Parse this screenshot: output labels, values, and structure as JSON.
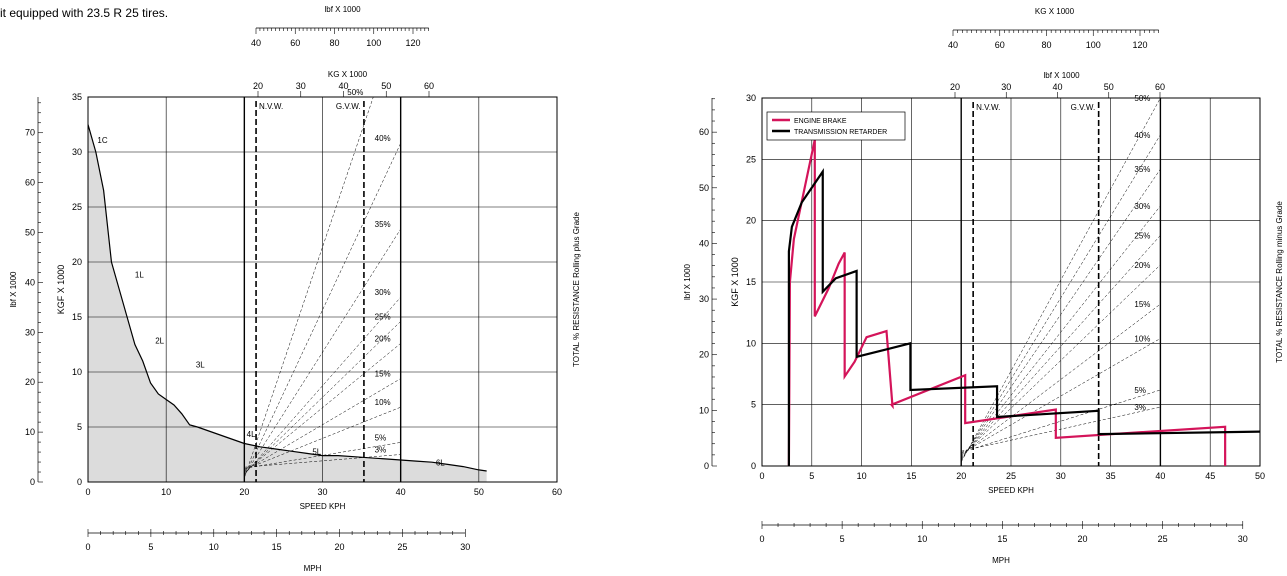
{
  "caption": "it equipped with 23.5 R 25 tires.",
  "chart_data": [
    {
      "type": "line",
      "name": "Rimpull",
      "x_unit": "SPEED KPH",
      "x_ticks": [
        0,
        10,
        20,
        30,
        40,
        50,
        60
      ],
      "xlim": [
        0,
        60
      ],
      "y_left_label": "KGF X 1000",
      "y_left_ticks": [
        0,
        5,
        10,
        15,
        20,
        25,
        30,
        35
      ],
      "ylim": [
        0,
        35
      ],
      "y_far_left_label": "lbf X 1000",
      "y_far_left_ticks": [
        0,
        10,
        20,
        30,
        40,
        50,
        60,
        70
      ],
      "y_right_label": "TOTAL % RESISTANCE Rolling plus Grade",
      "mph_label": "MPH",
      "mph_ticks": [
        0,
        5,
        10,
        15,
        20,
        25,
        30
      ],
      "top_scale_1_label": "lbf X 1000",
      "top_scale_1_ticks": [
        40,
        60,
        80,
        100,
        120
      ],
      "top_scale_2_label": "KG X 1000",
      "top_scale_2_ticks": [
        20,
        30,
        40,
        50,
        60
      ],
      "nvw_label": "N.V.W.",
      "gvw_label": "G.V.W.",
      "nvw_x": 21.5,
      "gvw_x": 35.3,
      "grade_labels": [
        "50%",
        "40%",
        "35%",
        "30%",
        "25%",
        "20%",
        "15%",
        "10%",
        "5%",
        "3%"
      ],
      "gear_labels": [
        {
          "text": "1C",
          "x": 1.2,
          "y": 30.8
        },
        {
          "text": "1L",
          "x": 6.0,
          "y": 18.6
        },
        {
          "text": "2L",
          "x": 8.6,
          "y": 12.6
        },
        {
          "text": "3L",
          "x": 13.8,
          "y": 10.4
        },
        {
          "text": "4L",
          "x": 20.3,
          "y": 4.1
        },
        {
          "text": "5L",
          "x": 28.7,
          "y": 2.5
        },
        {
          "text": "6L",
          "x": 44.5,
          "y": 1.5
        }
      ],
      "curve": {
        "x": [
          0,
          1,
          2,
          3,
          4,
          5,
          6,
          7,
          8,
          9,
          10,
          11,
          12,
          13,
          14,
          16,
          18,
          20,
          22,
          24,
          26,
          28,
          30,
          32,
          34,
          36,
          38,
          40,
          42,
          44,
          46,
          48,
          50,
          51
        ],
        "y": [
          32.5,
          30,
          26.5,
          20,
          17.5,
          15,
          12.5,
          11,
          9,
          8,
          7.5,
          7,
          6.2,
          5.2,
          5,
          4.5,
          4,
          3.5,
          3.2,
          3,
          2.8,
          2.6,
          2.4,
          2.4,
          2.3,
          2.2,
          2.1,
          2,
          1.9,
          1.8,
          1.6,
          1.4,
          1.1,
          1.0
        ]
      }
    },
    {
      "type": "line",
      "name": "Retarding",
      "x_unit": "SPEED KPH",
      "x_ticks": [
        0,
        5,
        10,
        15,
        20,
        25,
        30,
        35,
        40,
        45,
        50
      ],
      "xlim": [
        0,
        50
      ],
      "y_left_label": "KGF X 1000",
      "y_left_ticks": [
        0,
        5,
        10,
        15,
        20,
        25,
        30
      ],
      "ylim": [
        0,
        30
      ],
      "y_far_left_label": "lbf X 1000",
      "y_far_left_ticks": [
        0,
        10,
        20,
        30,
        40,
        50,
        60
      ],
      "y_right_label": "TOTAL % RESISTANCE Rolling minus Grade",
      "mph_label": "MPH",
      "mph_ticks": [
        0,
        5,
        10,
        15,
        20,
        25,
        30
      ],
      "top_scale_1_label": "KG X 1000",
      "top_scale_1_ticks": [
        40,
        60,
        80,
        100,
        120
      ],
      "top_scale_2_label": "lbf X 1000",
      "top_scale_2_ticks": [
        20,
        30,
        40,
        50,
        60
      ],
      "nvw_label": "N.V.W.",
      "gvw_label": "G.V.W.",
      "nvw_x": 21.2,
      "gvw_x": 33.8,
      "grade_labels": [
        "50%",
        "40%",
        "35%",
        "30%",
        "25%",
        "20%",
        "15%",
        "10%",
        "5%",
        "3%"
      ],
      "series": [
        {
          "name": "ENGINE BRAKE",
          "color": "#d4145a",
          "x": [
            2.7,
            2.8,
            3.2,
            5.3,
            5.3,
            6.7,
            7.7,
            8.3,
            8.3,
            9.3,
            10.5,
            12.5,
            13.1,
            13.0,
            20.4,
            20.4,
            29.5,
            29.5,
            46.5,
            46.5
          ],
          "y": [
            0,
            15,
            18.5,
            26.6,
            12.2,
            14.5,
            16.5,
            17.4,
            7.3,
            8.5,
            10.5,
            11.0,
            4.9,
            5.0,
            7.4,
            3.5,
            4.6,
            2.3,
            3.2,
            0
          ]
        },
        {
          "name": "TRANSMISSION RETARDER",
          "color": "#000000",
          "x": [
            2.7,
            2.7,
            3.0,
            4.0,
            6.1,
            6.1,
            7.4,
            9.5,
            9.5,
            14.9,
            14.9,
            23.6,
            23.6,
            33.8,
            33.8,
            50
          ],
          "y": [
            0,
            17.5,
            19.5,
            21.5,
            24,
            14.2,
            15.3,
            15.9,
            8.9,
            10.0,
            6.2,
            6.5,
            4.0,
            4.5,
            2.6,
            2.8
          ]
        }
      ]
    }
  ]
}
